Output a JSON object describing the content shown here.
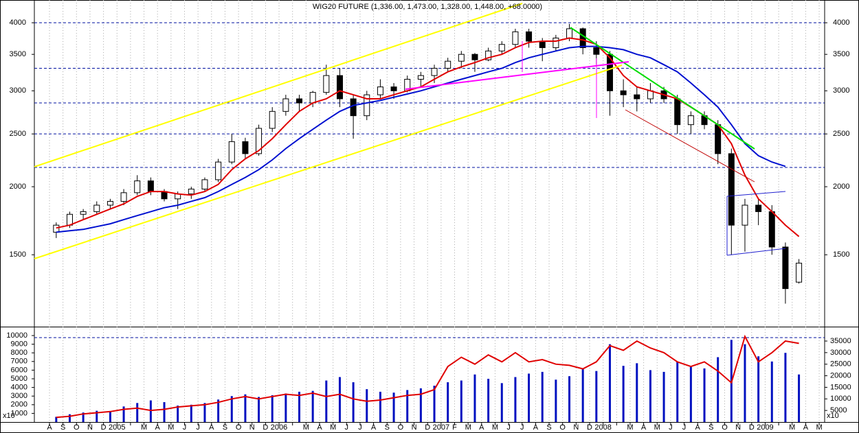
{
  "chart_data": [
    {
      "type": "candlestick",
      "title": "WIG20 FUTURE (1,336.00, 1,473.00, 1,328.00, 1,448.00, +68.0000)",
      "categories": [
        "A",
        "S",
        "O",
        "N",
        "D",
        "2005",
        null,
        "M",
        "A",
        "M",
        "J",
        "J",
        "A",
        "S",
        "O",
        "N",
        "D",
        "2006",
        null,
        "M",
        "A",
        "M",
        "J",
        "J",
        "A",
        "S",
        "O",
        "N",
        "D",
        "2007",
        "F",
        "M",
        "A",
        "M",
        "J",
        "J",
        "A",
        "S",
        "O",
        "N",
        "D",
        "2008",
        null,
        "M",
        "A",
        "M",
        "J",
        "J",
        "A",
        "S",
        "O",
        "N",
        "D",
        "2009",
        null,
        "M",
        "A",
        "M"
      ],
      "open": [
        1650,
        1700,
        1780,
        1800,
        1850,
        1880,
        1950,
        2050,
        1960,
        1900,
        1940,
        1980,
        2060,
        2220,
        2420,
        2300,
        2560,
        2750,
        2900,
        2850,
        2980,
        3200,
        2900,
        2700,
        2950,
        3050,
        3000,
        3150,
        3200,
        3300,
        3400,
        3500,
        3420,
        3550,
        3650,
        3850,
        3700,
        3600,
        3750,
        3900,
        3600,
        3500,
        3000,
        2950,
        2900,
        3000,
        2900,
        2600,
        2700,
        2600,
        2300,
        1700,
        1850,
        1800,
        1550,
        1336,
        null,
        null
      ],
      "high": [
        1720,
        1800,
        1820,
        1880,
        1900,
        1980,
        2100,
        2080,
        1980,
        1960,
        2000,
        2080,
        2250,
        2500,
        2460,
        2600,
        2800,
        2950,
        2950,
        3000,
        3350,
        3300,
        2950,
        3000,
        3150,
        3100,
        3200,
        3250,
        3350,
        3450,
        3550,
        3520,
        3600,
        3700,
        3900,
        3900,
        3750,
        3800,
        3980,
        3920,
        3700,
        3550,
        3150,
        3050,
        3100,
        3050,
        2950,
        2750,
        2750,
        2650,
        2350,
        1900,
        1900,
        1850,
        1580,
        1473,
        null,
        null
      ],
      "low": [
        1610,
        1680,
        1740,
        1780,
        1820,
        1850,
        1930,
        1930,
        1880,
        1820,
        1900,
        1960,
        2040,
        2200,
        2250,
        2280,
        2520,
        2700,
        2750,
        2800,
        2950,
        2800,
        2450,
        2650,
        2900,
        2900,
        2980,
        3050,
        3100,
        3250,
        3300,
        3250,
        3400,
        3500,
        3600,
        3600,
        3400,
        3550,
        3700,
        3500,
        3350,
        2700,
        2800,
        2750,
        2850,
        2850,
        2500,
        2500,
        2550,
        2200,
        1500,
        1520,
        1700,
        1500,
        1220,
        1328,
        null,
        null
      ],
      "close": [
        1700,
        1780,
        1800,
        1850,
        1880,
        1950,
        2050,
        1960,
        1900,
        1940,
        1980,
        2060,
        2220,
        2420,
        2300,
        2560,
        2750,
        2900,
        2850,
        2980,
        3200,
        2900,
        2700,
        2950,
        3050,
        3000,
        3150,
        3200,
        3300,
        3400,
        3500,
        3420,
        3550,
        3650,
        3850,
        3700,
        3600,
        3750,
        3900,
        3600,
        3500,
        3000,
        2950,
        2900,
        3000,
        2900,
        2600,
        2700,
        2600,
        2300,
        1700,
        1850,
        1800,
        1550,
        1300,
        1448,
        null,
        null
      ],
      "lines": [
        {
          "color": "#e00000",
          "values": [
            1680,
            1700,
            1740,
            1780,
            1820,
            1860,
            1920,
            1960,
            1960,
            1940,
            1930,
            1960,
            2020,
            2150,
            2250,
            2330,
            2450,
            2600,
            2750,
            2850,
            2900,
            3000,
            2950,
            2900,
            2900,
            2950,
            3000,
            3050,
            3150,
            3250,
            3320,
            3380,
            3450,
            3500,
            3600,
            3680,
            3700,
            3700,
            3750,
            3720,
            3650,
            3450,
            3200,
            3050,
            3000,
            2950,
            2900,
            2800,
            2700,
            2600,
            2400,
            2100,
            1900,
            1800,
            1700,
            1620,
            null,
            null
          ]
        },
        {
          "color": "#0010d0",
          "values": [
            1650,
            1660,
            1670,
            1690,
            1710,
            1740,
            1770,
            1800,
            1830,
            1850,
            1880,
            1910,
            1960,
            2020,
            2080,
            2150,
            2240,
            2350,
            2450,
            2550,
            2650,
            2750,
            2820,
            2850,
            2880,
            2920,
            2960,
            3000,
            3050,
            3100,
            3150,
            3200,
            3250,
            3300,
            3380,
            3450,
            3500,
            3550,
            3600,
            3620,
            3620,
            3600,
            3570,
            3500,
            3450,
            3350,
            3250,
            3100,
            2950,
            2800,
            2600,
            2400,
            2280,
            2220,
            2180,
            null,
            null,
            null
          ]
        }
      ],
      "yscale": "log",
      "ylim": [
        1107,
        4404
      ],
      "yticks": [
        1500,
        2000,
        2500,
        3000,
        3500,
        4000
      ],
      "hlines": [
        2170,
        2500,
        2850,
        3300,
        4000
      ],
      "hline_color": "#0010a0"
    },
    {
      "type": "bar",
      "multiplier_label": "x10",
      "series": [
        {
          "color": "#0010c0",
          "values": [
            600,
            900,
            1100,
            1300,
            1200,
            1800,
            2200,
            2500,
            2300,
            1900,
            2000,
            2200,
            2600,
            3000,
            3200,
            2900,
            3100,
            3300,
            3500,
            3600,
            4800,
            5200,
            4600,
            3800,
            3500,
            3400,
            3700,
            3900,
            4200,
            4600,
            4800,
            5500,
            5000,
            4500,
            5200,
            5600,
            5800,
            4900,
            5300,
            6200,
            5900,
            9000,
            6500,
            6800,
            6000,
            5800,
            7000,
            6500,
            6200,
            7500,
            9500,
            9000,
            7600,
            7000,
            8000,
            5500,
            null,
            null
          ]
        },
        {
          "color": "#e00000",
          "axis": "y2",
          "values": [
            2000,
            2500,
            3500,
            4000,
            4500,
            5500,
            6000,
            5000,
            5500,
            6500,
            7000,
            7500,
            8500,
            10000,
            11000,
            10000,
            11000,
            12000,
            11500,
            12500,
            11000,
            12000,
            10000,
            9000,
            9500,
            10500,
            11500,
            12000,
            14000,
            24000,
            28000,
            25000,
            29000,
            26000,
            30000,
            26000,
            27000,
            25000,
            24500,
            23000,
            26000,
            33000,
            31000,
            35000,
            32000,
            30000,
            26000,
            24000,
            26000,
            22000,
            17000,
            37000,
            26000,
            30000,
            35000,
            34000,
            null,
            null
          ]
        }
      ],
      "ylim": [
        0,
        10873
      ],
      "yticks": [
        1000,
        2000,
        3000,
        4000,
        5000,
        6000,
        7000,
        8000,
        9000,
        10000
      ],
      "y2lim": [
        0,
        40636
      ],
      "y2ticks": [
        5000,
        10000,
        15000,
        20000,
        25000,
        30000,
        35000
      ],
      "hlines": [
        36500
      ],
      "hline_color": "#0010a0"
    }
  ]
}
